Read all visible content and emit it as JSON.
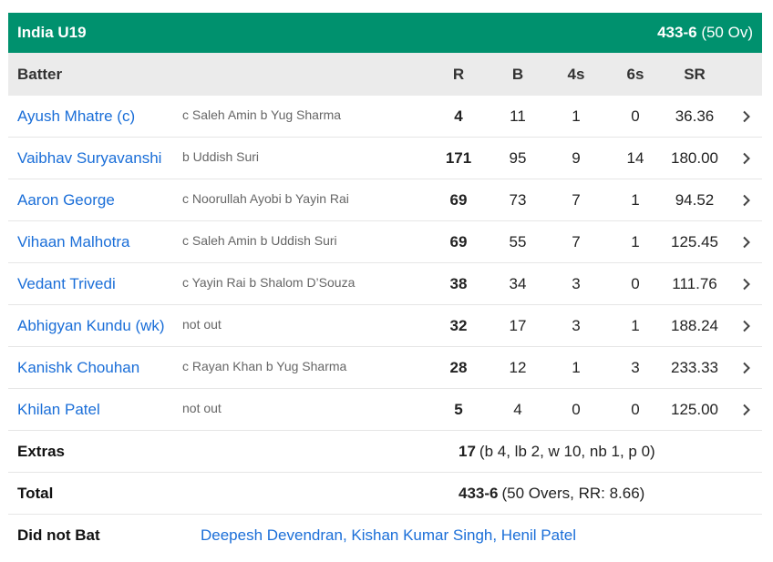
{
  "team": {
    "name": "India U19",
    "score": "433-6",
    "overs": "(50 Ov)",
    "color": "#00916e"
  },
  "columns": {
    "batter": "Batter",
    "r": "R",
    "b": "B",
    "fours": "4s",
    "sixes": "6s",
    "sr": "SR"
  },
  "batters": [
    {
      "name": "Ayush Mhatre (c)",
      "dismissal": "c Saleh Amin b Yug Sharma",
      "r": "4",
      "b": "11",
      "fours": "1",
      "sixes": "0",
      "sr": "36.36"
    },
    {
      "name": "Vaibhav Suryavanshi",
      "dismissal": "b Uddish Suri",
      "r": "171",
      "b": "95",
      "fours": "9",
      "sixes": "14",
      "sr": "180.00"
    },
    {
      "name": "Aaron George",
      "dismissal": "c Noorullah Ayobi b Yayin Rai",
      "r": "69",
      "b": "73",
      "fours": "7",
      "sixes": "1",
      "sr": "94.52"
    },
    {
      "name": "Vihaan Malhotra",
      "dismissal": "c Saleh Amin b Uddish Suri",
      "r": "69",
      "b": "55",
      "fours": "7",
      "sixes": "1",
      "sr": "125.45"
    },
    {
      "name": "Vedant Trivedi",
      "dismissal": "c Yayin Rai b Shalom D’Souza",
      "r": "38",
      "b": "34",
      "fours": "3",
      "sixes": "0",
      "sr": "111.76"
    },
    {
      "name": "Abhigyan Kundu (wk)",
      "dismissal": "not out",
      "r": "32",
      "b": "17",
      "fours": "3",
      "sixes": "1",
      "sr": "188.24"
    },
    {
      "name": "Kanishk Chouhan",
      "dismissal": "c Rayan Khan b Yug Sharma",
      "r": "28",
      "b": "12",
      "fours": "1",
      "sixes": "3",
      "sr": "233.33"
    },
    {
      "name": "Khilan Patel",
      "dismissal": "not out",
      "r": "5",
      "b": "4",
      "fours": "0",
      "sixes": "0",
      "sr": "125.00"
    }
  ],
  "extras": {
    "label": "Extras",
    "total": "17",
    "detail": "(b 4, lb 2, w 10, nb 1, p 0)"
  },
  "total": {
    "label": "Total",
    "score": "433-6",
    "detail": "(50 Overs, RR: 8.66)"
  },
  "did_not_bat": {
    "label": "Did not Bat",
    "players": "Deepesh Devendran, Kishan Kumar Singh, Henil Patel"
  },
  "icons": {
    "row_chevron": "chevron-right-icon"
  }
}
